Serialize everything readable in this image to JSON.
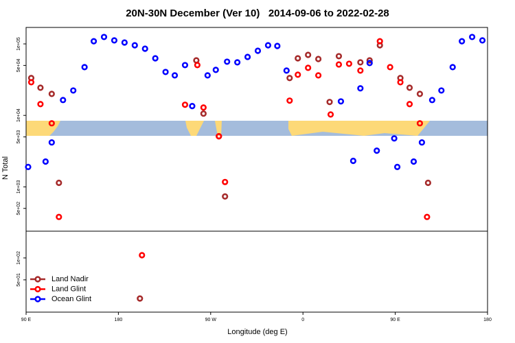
{
  "chart_data": [
    {
      "type": "scatter",
      "title": "20N-30N December (Ver 10)   2014-09-06 to 2022-02-28",
      "ylabel": "N Total",
      "log_y": true,
      "xlim": [
        90,
        540
      ],
      "ylim": [
        240,
        170000
      ],
      "yticks": [
        {
          "value": 100000,
          "label": "1e+05"
        },
        {
          "value": 50000,
          "label": "5e+04"
        },
        {
          "value": 10000,
          "label": "1e+04"
        },
        {
          "value": 5000,
          "label": "5e+03"
        },
        {
          "value": 1000,
          "label": "1e+03"
        },
        {
          "value": 500,
          "label": "5e+02"
        }
      ],
      "series": [
        {
          "name": "Land Nadir",
          "color": "#a52a2a",
          "x": [
            95,
            104,
            115,
            122,
            256,
            263,
            278,
            284,
            347,
            355,
            365,
            375,
            386,
            395,
            416,
            425,
            435,
            455,
            464,
            474,
            482
          ],
          "values": [
            33300,
            24400,
            20000,
            1140,
            58900,
            10600,
            5110,
            735,
            33300,
            62900,
            70300,
            61500,
            15400,
            67300,
            55200,
            58900,
            95700,
            33300,
            24400,
            20000,
            1140
          ]
        },
        {
          "name": "Land Glint",
          "color": "#ff0000",
          "x": [
            95,
            104,
            115,
            122,
            245,
            257,
            263,
            278,
            284,
            347,
            355,
            365,
            375,
            387,
            395,
            405,
            416,
            435,
            445,
            455,
            464,
            474,
            481
          ],
          "values": [
            29100,
            14400,
            7760,
            380,
            14100,
            50500,
            12900,
            5110,
            1170,
            16100,
            37100,
            46300,
            36300,
            10300,
            51600,
            52800,
            42400,
            109000,
            47300,
            29100,
            14400,
            7760,
            380
          ]
        },
        {
          "name": "Ocean Glint",
          "color": "#0000ff",
          "x": [
            92,
            109,
            115,
            126,
            136,
            147,
            156,
            166,
            176,
            186,
            196,
            206,
            216,
            226,
            235,
            245,
            252,
            267,
            275,
            286,
            296,
            306,
            316,
            326,
            335,
            344,
            397,
            409,
            416,
            425,
            432,
            449,
            452,
            468,
            476,
            486,
            495,
            506,
            515,
            525,
            535
          ],
          "values": [
            1900,
            2260,
            4190,
            16400,
            22300,
            47300,
            109000,
            125000,
            112000,
            104500,
            95700,
            85700,
            62900,
            40500,
            36300,
            50500,
            13500,
            36300,
            43300,
            56400,
            55200,
            65800,
            80200,
            95700,
            93600,
            42400,
            15700,
            2310,
            23900,
            54000,
            3210,
            4770,
            1900,
            2260,
            4190,
            16400,
            22300,
            47300,
            109000,
            125000,
            112000
          ]
        }
      ]
    },
    {
      "type": "scatter",
      "xlabel": "Longitude (deg E)",
      "log_y": true,
      "legend": "lower left",
      "xlim": [
        90,
        540
      ],
      "ylim": [
        18,
        233
      ],
      "xticks": [
        {
          "value": 90,
          "label": "90 E"
        },
        180,
        {
          "value": 270,
          "label": "90 W"
        },
        {
          "value": 360,
          "label": "0"
        },
        {
          "value": 450,
          "label": "90 E"
        },
        {
          "value": 540,
          "label": "180"
        }
      ],
      "yticks": [
        {
          "value": 100,
          "label": "1e+02"
        },
        {
          "value": 50,
          "label": "5e+01"
        }
      ],
      "series": [
        {
          "name": "Land Nadir",
          "color": "#a52a2a",
          "x": [
            201
          ],
          "values": [
            27.7
          ]
        },
        {
          "name": "Land Glint",
          "color": "#ff0000",
          "x": [
            203
          ],
          "values": [
            109
          ]
        },
        {
          "name": "Ocean Glint",
          "color": "#0000ff",
          "x": [],
          "values": []
        }
      ]
    }
  ]
}
